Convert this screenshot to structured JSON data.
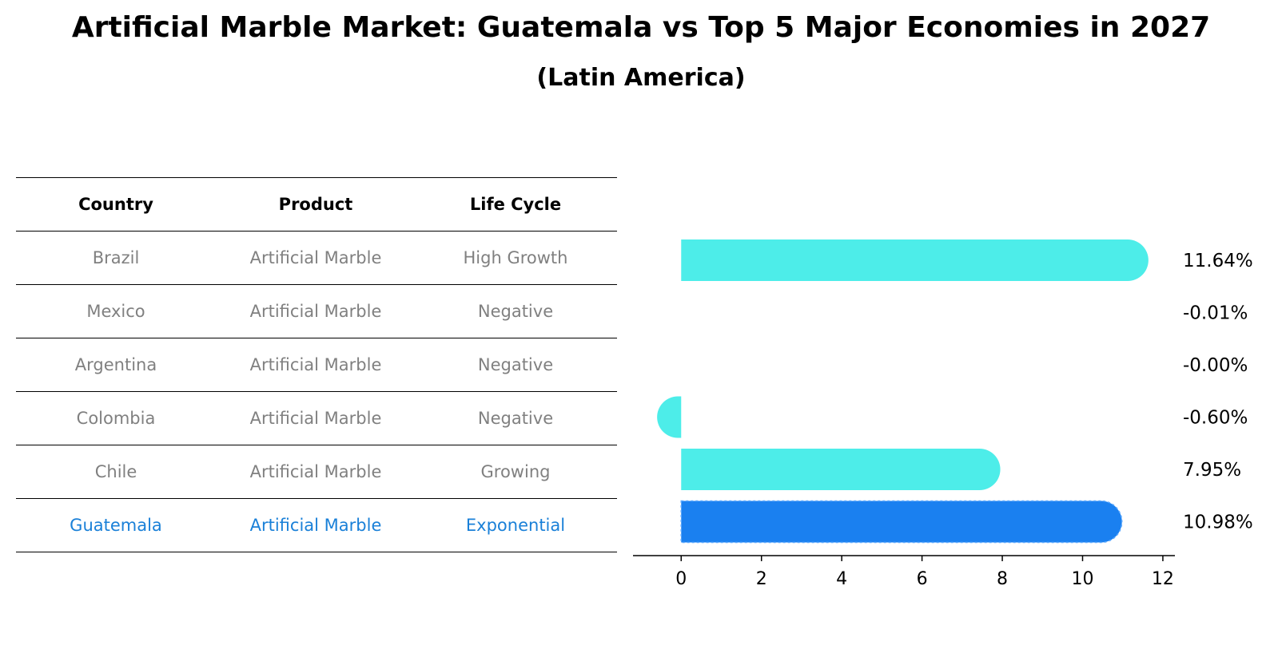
{
  "title": "Artificial Marble Market: Guatemala vs Top 5 Major Economies in 2027",
  "subtitle": "(Latin America)",
  "table": {
    "headers": [
      "Country",
      "Product",
      "Life Cycle"
    ],
    "rows": [
      {
        "country": "Brazil",
        "product": "Artificial Marble",
        "life_cycle": "High Growth"
      },
      {
        "country": "Mexico",
        "product": "Artificial Marble",
        "life_cycle": "Negative"
      },
      {
        "country": "Argentina",
        "product": "Artificial Marble",
        "life_cycle": "Negative"
      },
      {
        "country": "Colombia",
        "product": "Artificial Marble",
        "life_cycle": "Negative"
      },
      {
        "country": "Chile",
        "product": "Artificial Marble",
        "life_cycle": "Growing"
      },
      {
        "country": "Guatemala",
        "product": "Artificial Marble",
        "life_cycle": "Exponential"
      }
    ]
  },
  "colors": {
    "bar": "#4dede9",
    "highlight_bar": "#1a80f0",
    "muted_text": "#808080",
    "highlight_text": "#1a80d8"
  },
  "chart_data": {
    "type": "bar",
    "orientation": "horizontal",
    "categories": [
      "Brazil",
      "Mexico",
      "Argentina",
      "Colombia",
      "Chile",
      "Guatemala"
    ],
    "values": [
      11.64,
      -0.01,
      -0.0,
      -0.6,
      7.95,
      10.98
    ],
    "value_labels": [
      "11.64%",
      "-0.01%",
      "-0.00%",
      "-0.60%",
      "7.95%",
      "10.98%"
    ],
    "highlight": "Guatemala",
    "xticks": [
      0,
      2,
      4,
      6,
      8,
      10,
      12
    ],
    "xlim": [
      -1.2,
      12.3
    ],
    "xlabel": "",
    "ylabel": ""
  }
}
